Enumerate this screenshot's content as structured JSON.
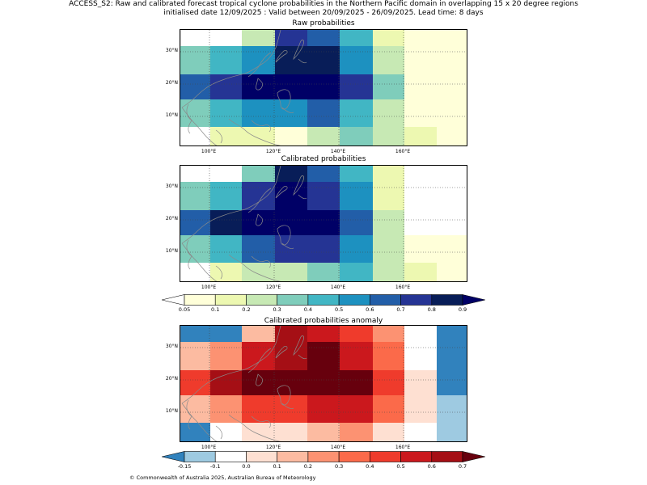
{
  "header": {
    "line1": "ACCESS_S2: Raw and calibrated forecast tropical cyclone probabilities in the Northern Pacific domain in overlapping 15 x 20 degree regions",
    "line2": "initialised date 12/09/2025 :  Valid between 20/09/2025 - 26/09/2025. Lead time: 8 days"
  },
  "lat_labels": [
    "30°N",
    "20°N",
    "10°N"
  ],
  "lon_labels": [
    "100°E",
    "120°E",
    "140°E",
    "160°E"
  ],
  "panels": [
    {
      "title": "Raw probabilities",
      "grid": [
        [
          "#ffffff",
          "#ffffff",
          "#c7e9b4",
          "#253494",
          "#225ea8",
          "#41b6c4",
          "#edf8b1",
          "#ffffd9",
          "#ffffd9"
        ],
        [
          "#7fcdbb",
          "#41b6c4",
          "#1d91c0",
          "#081d58",
          "#081d58",
          "#1d91c0",
          "#c7e9b4",
          "#ffffd9",
          "#ffffd9"
        ],
        [
          "#225ea8",
          "#253494",
          "#000066",
          "#000066",
          "#000066",
          "#253494",
          "#7fcdbb",
          "#ffffd9",
          "#ffffd9"
        ],
        [
          "#7fcdbb",
          "#41b6c4",
          "#1d91c0",
          "#1d91c0",
          "#225ea8",
          "#41b6c4",
          "#c7e9b4",
          "#ffffd9",
          "#ffffd9"
        ],
        [
          "#ffffff",
          "#edf8b1",
          "#edf8b1",
          "#ffffd9",
          "#c7e9b4",
          "#7fcdbb",
          "#c7e9b4",
          "#edf8b1",
          "#ffffd9"
        ]
      ]
    },
    {
      "title": "Calibrated probabilities",
      "grid": [
        [
          "#ffffff",
          "#ffffff",
          "#7fcdbb",
          "#081d58",
          "#225ea8",
          "#41b6c4",
          "#edf8b1",
          "#ffffff",
          "#ffffff"
        ],
        [
          "#7fcdbb",
          "#41b6c4",
          "#253494",
          "#000066",
          "#253494",
          "#1d91c0",
          "#edf8b1",
          "#ffffff",
          "#ffffff"
        ],
        [
          "#225ea8",
          "#081d58",
          "#000066",
          "#000066",
          "#000066",
          "#225ea8",
          "#c7e9b4",
          "#ffffff",
          "#ffffff"
        ],
        [
          "#7fcdbb",
          "#41b6c4",
          "#225ea8",
          "#253494",
          "#253494",
          "#1d91c0",
          "#c7e9b4",
          "#ffffd9",
          "#ffffd9"
        ],
        [
          "#ffffff",
          "#edf8b1",
          "#c7e9b4",
          "#c7e9b4",
          "#7fcdbb",
          "#41b6c4",
          "#c7e9b4",
          "#edf8b1",
          "#ffffd9"
        ]
      ]
    },
    {
      "title": "Calibrated probabilities anomaly",
      "grid": [
        [
          "#3182bd",
          "#3182bd",
          "#fcbba1",
          "#a50f15",
          "#cb181d",
          "#ef3b2c",
          "#fc9272",
          "#ffffff",
          "#3182bd"
        ],
        [
          "#fcbba1",
          "#fc9272",
          "#cb181d",
          "#a50f15",
          "#67000d",
          "#cb181d",
          "#fb6a4a",
          "#ffffff",
          "#3182bd"
        ],
        [
          "#ef3b2c",
          "#a50f15",
          "#67000d",
          "#67000d",
          "#67000d",
          "#67000d",
          "#ef3b2c",
          "#fee0d2",
          "#3182bd"
        ],
        [
          "#fcbba1",
          "#fc9272",
          "#ef3b2c",
          "#ef3b2c",
          "#cb181d",
          "#cb181d",
          "#fb6a4a",
          "#fee0d2",
          "#9ecae1"
        ],
        [
          "#3182bd",
          "#ffffff",
          "#fee0d2",
          "#fee0d2",
          "#fcbba1",
          "#fc9272",
          "#fee0d2",
          "#ffffff",
          "#9ecae1"
        ]
      ]
    }
  ],
  "colorbar1": {
    "under": "#ffffff",
    "over": "#000066",
    "colors": [
      "#ffffd9",
      "#edf8b1",
      "#c7e9b4",
      "#7fcdbb",
      "#41b6c4",
      "#1d91c0",
      "#225ea8",
      "#253494",
      "#081d58"
    ],
    "labels": [
      "0.05",
      "0.1",
      "0.2",
      "0.3",
      "0.4",
      "0.5",
      "0.6",
      "0.7",
      "0.8",
      "0.9"
    ]
  },
  "colorbar2": {
    "under": "#3182bd",
    "over": "#67000d",
    "colors": [
      "#9ecae1",
      "#ffffff",
      "#fee0d2",
      "#fcbba1",
      "#fc9272",
      "#fb6a4a",
      "#ef3b2c",
      "#cb181d",
      "#a50f15"
    ],
    "labels": [
      "-0.15",
      "-0.1",
      "0.0",
      "0.1",
      "0.2",
      "0.3",
      "0.4",
      "0.5",
      "0.6",
      "0.7"
    ]
  },
  "footer": "© Commonwealth of Australia 2025, Australian Bureau of Meteorology"
}
